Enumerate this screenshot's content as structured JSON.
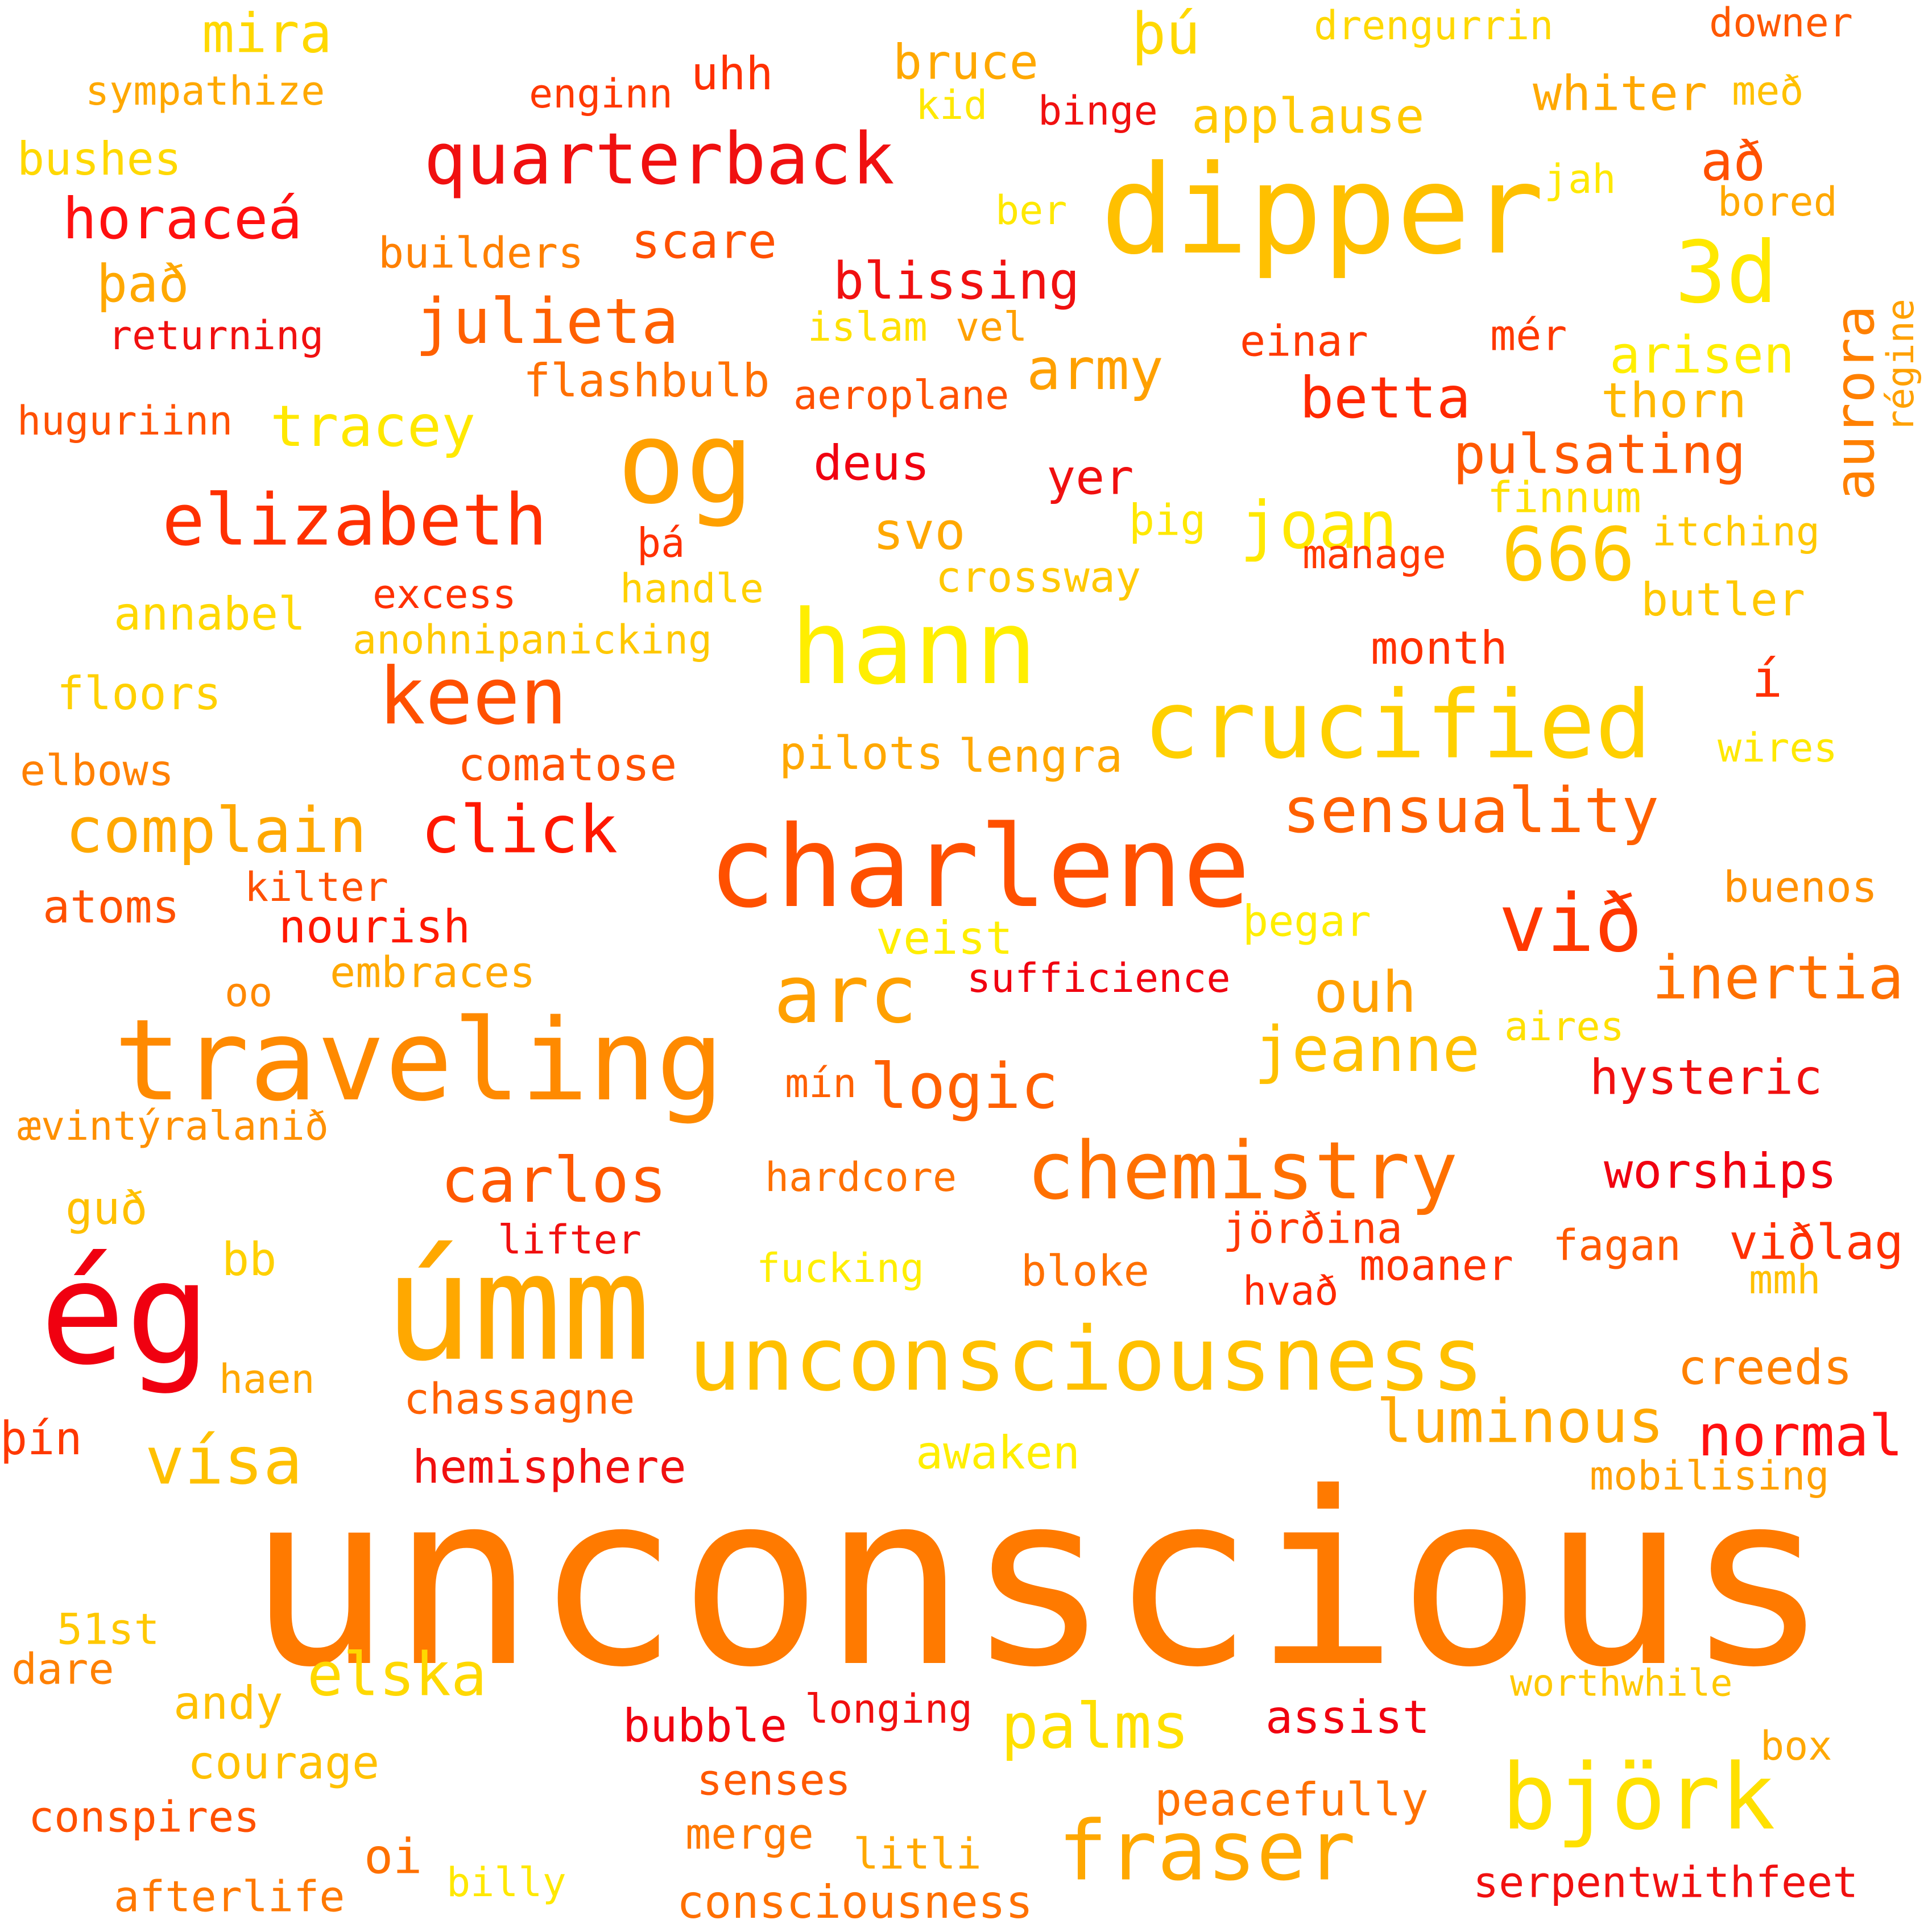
{
  "words": [
    {
      "text": "unconscious",
      "color": "#ff7a00"
    },
    {
      "text": "dipper",
      "color": "#ffc000"
    },
    {
      "text": "charlene",
      "color": "#ff5000"
    },
    {
      "text": "traveling",
      "color": "#ff8a00"
    },
    {
      "text": "úmm",
      "color": "#ffa800"
    },
    {
      "text": "ég",
      "color": "#f00010"
    },
    {
      "text": "unconsciousness",
      "color": "#ffc000"
    },
    {
      "text": "crucified",
      "color": "#ffd000"
    },
    {
      "text": "hann",
      "color": "#ffee00"
    },
    {
      "text": "og",
      "color": "#ffa000"
    },
    {
      "text": "chemistry",
      "color": "#ff7000"
    },
    {
      "text": "björk",
      "color": "#ffe000"
    },
    {
      "text": "quarterback",
      "color": "#f01010"
    },
    {
      "text": "fraser",
      "color": "#ffa800"
    },
    {
      "text": "arc",
      "color": "#ffa000"
    },
    {
      "text": "við",
      "color": "#ff3800"
    },
    {
      "text": "3d",
      "color": "#ffe800"
    },
    {
      "text": "keen",
      "color": "#ff5000"
    },
    {
      "text": "elizabeth",
      "color": "#ff3000"
    },
    {
      "text": "sensuality",
      "color": "#ff6000"
    },
    {
      "text": "logic",
      "color": "#ff6000"
    },
    {
      "text": "jeanne",
      "color": "#ffc000"
    },
    {
      "text": "julieta",
      "color": "#ff6000"
    },
    {
      "text": "complain",
      "color": "#ffa800"
    },
    {
      "text": "vísa",
      "color": "#ffc000"
    },
    {
      "text": "click",
      "color": "#ff1800"
    },
    {
      "text": "carlos",
      "color": "#ff5800"
    },
    {
      "text": "inertia",
      "color": "#ff7000"
    },
    {
      "text": "666",
      "color": "#ffc800"
    },
    {
      "text": "joan",
      "color": "#ffe800"
    },
    {
      "text": "luminous",
      "color": "#ffa800"
    },
    {
      "text": "palms",
      "color": "#ffe000"
    },
    {
      "text": "normal",
      "color": "#ff1010"
    },
    {
      "text": "tracey",
      "color": "#ffe800"
    },
    {
      "text": "elska",
      "color": "#ffd800"
    },
    {
      "text": "ouh",
      "color": "#ffa000"
    },
    {
      "text": "horaceá",
      "color": "#ff1010"
    },
    {
      "text": "betta",
      "color": "#ff2800"
    },
    {
      "text": "army",
      "color": "#ffa000"
    },
    {
      "text": "aurora",
      "color": "#ff8000"
    },
    {
      "text": "pulsating",
      "color": "#ff5800"
    },
    {
      "text": "worships",
      "color": "#f00010"
    },
    {
      "text": "blissing",
      "color": "#f01010"
    },
    {
      "text": "mira",
      "color": "#ffd800"
    },
    {
      "text": "þú",
      "color": "#ffd800"
    },
    {
      "text": "bruce",
      "color": "#ffa800"
    },
    {
      "text": "applause",
      "color": "#ffc800"
    },
    {
      "text": "whiter",
      "color": "#ffa800"
    },
    {
      "text": "að",
      "color": "#ff5000"
    },
    {
      "text": "það",
      "color": "#ffa800"
    },
    {
      "text": "scare",
      "color": "#ff5000"
    },
    {
      "text": "arisen",
      "color": "#ffee00"
    },
    {
      "text": "thorn",
      "color": "#ffb800"
    },
    {
      "text": "svo",
      "color": "#ffa800"
    },
    {
      "text": "yer",
      "color": "#f01010"
    },
    {
      "text": "deus",
      "color": "#f00010"
    },
    {
      "text": "hysteric",
      "color": "#f01010"
    },
    {
      "text": "creeds",
      "color": "#ff8000"
    },
    {
      "text": "viðlag",
      "color": "#ff3000"
    },
    {
      "text": "hemisphere",
      "color": "#f01010"
    },
    {
      "text": "awaken",
      "color": "#ffee00"
    },
    {
      "text": "peacefully",
      "color": "#ff7000"
    },
    {
      "text": "assist",
      "color": "#f00010"
    },
    {
      "text": "consciousness",
      "color": "#ff7000"
    },
    {
      "text": "serpentwithfeet",
      "color": "#f01010"
    },
    {
      "text": "oi",
      "color": "#ff7000"
    },
    {
      "text": "andy",
      "color": "#ffc000"
    },
    {
      "text": "courage",
      "color": "#ffc000"
    },
    {
      "text": "month",
      "color": "#ff3000"
    },
    {
      "text": "comatose",
      "color": "#ff5000"
    },
    {
      "text": "pilots",
      "color": "#ffa800"
    },
    {
      "text": "lengra",
      "color": "#ffa800"
    },
    {
      "text": "nourish",
      "color": "#ff1800"
    },
    {
      "text": "í",
      "color": "#ff3000"
    },
    {
      "text": "crossway",
      "color": "#ffc800"
    },
    {
      "text": "veist",
      "color": "#ffee00"
    },
    {
      "text": "þegar",
      "color": "#ffee00"
    },
    {
      "text": "annabel",
      "color": "#ffd800"
    },
    {
      "text": "floors",
      "color": "#ffd000"
    },
    {
      "text": "butler",
      "color": "#ffc800"
    },
    {
      "text": "buenos",
      "color": "#ff9000"
    },
    {
      "text": "finnum",
      "color": "#ffe000"
    },
    {
      "text": "itching",
      "color": "#ffc800"
    },
    {
      "text": "bubble",
      "color": "#f00010"
    },
    {
      "text": "longing",
      "color": "#f01010"
    },
    {
      "text": "senses",
      "color": "#ff5800"
    },
    {
      "text": "merge",
      "color": "#ff7800"
    },
    {
      "text": "litli",
      "color": "#ffa800"
    },
    {
      "text": "billy",
      "color": "#ffe800"
    },
    {
      "text": "afterlife",
      "color": "#ff7800"
    },
    {
      "text": "conspires",
      "color": "#ff5000"
    },
    {
      "text": "51st",
      "color": "#ffc800"
    },
    {
      "text": "dare",
      "color": "#ff8000"
    },
    {
      "text": "chassagne",
      "color": "#ff6000"
    },
    {
      "text": "haen",
      "color": "#ffa800"
    },
    {
      "text": "þín",
      "color": "#ff3800"
    },
    {
      "text": "bb",
      "color": "#ffd000"
    },
    {
      "text": "guð",
      "color": "#ffc000"
    },
    {
      "text": "ævintýralanið",
      "color": "#ff9000"
    },
    {
      "text": "embraces",
      "color": "#ffa800"
    },
    {
      "text": "oo",
      "color": "#ff8800"
    },
    {
      "text": "atoms",
      "color": "#ff5000"
    },
    {
      "text": "kilter",
      "color": "#ff5000"
    },
    {
      "text": "elbows",
      "color": "#ff8000"
    },
    {
      "text": "sufficience",
      "color": "#f00010"
    },
    {
      "text": "mín",
      "color": "#ff6000"
    },
    {
      "text": "hardcore",
      "color": "#ff7000"
    },
    {
      "text": "lifter",
      "color": "#f01010"
    },
    {
      "text": "fucking",
      "color": "#ffee00"
    },
    {
      "text": "bloke",
      "color": "#ff7000"
    },
    {
      "text": "jörðina",
      "color": "#ff3800"
    },
    {
      "text": "moaner",
      "color": "#ff3000"
    },
    {
      "text": "hvað",
      "color": "#ff2800"
    },
    {
      "text": "fagan",
      "color": "#ff5800"
    },
    {
      "text": "mmh",
      "color": "#ffc000"
    },
    {
      "text": "aires",
      "color": "#ffe000"
    },
    {
      "text": "mobilising",
      "color": "#ffa000"
    },
    {
      "text": "worthwhile",
      "color": "#ffc800"
    },
    {
      "text": "box",
      "color": "#ffa800"
    },
    {
      "text": "excess",
      "color": "#ff3000"
    },
    {
      "text": "anohnipanicking",
      "color": "#ffc800"
    },
    {
      "text": "handle",
      "color": "#ffd000"
    },
    {
      "text": "þá",
      "color": "#ff3000"
    },
    {
      "text": "þig",
      "color": "#ffe800"
    },
    {
      "text": "manage",
      "color": "#ff3800"
    },
    {
      "text": "flashbulb",
      "color": "#ff7000"
    },
    {
      "text": "aeroplane",
      "color": "#ff5000"
    },
    {
      "text": "returning",
      "color": "#f01010"
    },
    {
      "text": "huguriinn",
      "color": "#ff5000"
    },
    {
      "text": "islam",
      "color": "#ffe000"
    },
    {
      "text": "vel",
      "color": "#ffa000"
    },
    {
      "text": "einar",
      "color": "#ff3800"
    },
    {
      "text": "mér",
      "color": "#ff3800"
    },
    {
      "text": "régine",
      "color": "#ffa000"
    },
    {
      "text": "builders",
      "color": "#ff8000"
    },
    {
      "text": "sympathize",
      "color": "#ffa800"
    },
    {
      "text": "bushes",
      "color": "#ffd800"
    },
    {
      "text": "enginn",
      "color": "#ff3800"
    },
    {
      "text": "uhh",
      "color": "#ff3000"
    },
    {
      "text": "kid",
      "color": "#ffe800"
    },
    {
      "text": "binge",
      "color": "#f01010"
    },
    {
      "text": "ber",
      "color": "#ffe800"
    },
    {
      "text": "drengurrin",
      "color": "#ffd800"
    },
    {
      "text": "downer",
      "color": "#ff5800"
    },
    {
      "text": "með",
      "color": "#ffc000"
    },
    {
      "text": "jah",
      "color": "#ffe800"
    },
    {
      "text": "bored",
      "color": "#ffa800"
    },
    {
      "text": "wires",
      "color": "#ffe800"
    }
  ]
}
